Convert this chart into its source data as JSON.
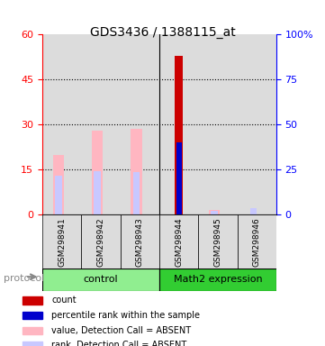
{
  "title": "GDS3436 / 1388115_at",
  "samples": [
    "GSM298941",
    "GSM298942",
    "GSM298943",
    "GSM298944",
    "GSM298945",
    "GSM298946"
  ],
  "groups": [
    "control",
    "control",
    "control",
    "Math2 expression",
    "Math2 expression",
    "Math2 expression"
  ],
  "group_colors": [
    "#90EE90",
    "#90EE90",
    "#90EE90",
    "#32CD32",
    "#32CD32",
    "#32CD32"
  ],
  "value_absent": [
    20,
    28,
    28.5,
    0,
    1.5,
    0
  ],
  "rank_absent": [
    13,
    14.5,
    14,
    0,
    1.2,
    2.2
  ],
  "count_value": [
    0,
    0,
    0,
    53,
    0,
    0
  ],
  "percentile_rank": [
    0,
    0,
    0,
    24,
    0,
    0
  ],
  "rank_absent_5_6": [
    0,
    0,
    0,
    0,
    1.0,
    1.8
  ],
  "ylim_left": [
    0,
    60
  ],
  "ylim_right": [
    0,
    100
  ],
  "yticks_left": [
    0,
    15,
    30,
    45,
    60
  ],
  "yticks_right": [
    0,
    25,
    50,
    75,
    100
  ],
  "bar_width": 0.35,
  "color_value_absent": "#FFB6C1",
  "color_rank_absent": "#C8C8FF",
  "color_count": "#CC0000",
  "color_percentile": "#0000CC",
  "bg_color": "#DCDCDC",
  "group_label_light": "#90EE90",
  "group_label_dark": "#32CD32",
  "protocol_label": "protocol"
}
